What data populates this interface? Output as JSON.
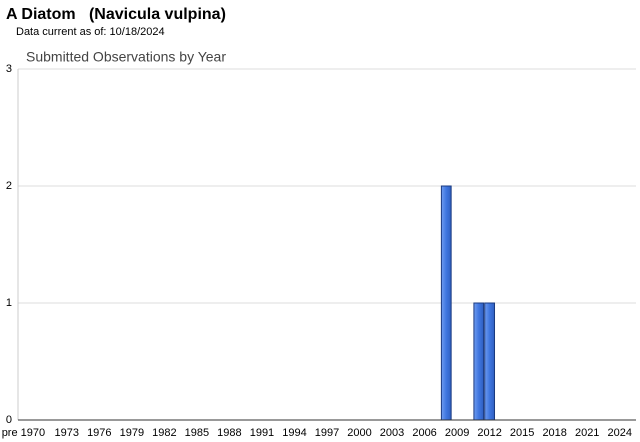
{
  "header": {
    "title": "A Diatom   (Navicula vulpina)",
    "subtitle": "Data current as of: 10/18/2024"
  },
  "chart_data": {
    "type": "bar",
    "title": "Submitted Observations by Year",
    "categories": [
      "pre 1970",
      null,
      null,
      null,
      "1973",
      null,
      null,
      "1976",
      null,
      null,
      "1979",
      null,
      null,
      "1982",
      null,
      null,
      "1985",
      null,
      null,
      "1988",
      null,
      null,
      "1991",
      null,
      null,
      "1994",
      null,
      null,
      "1997",
      null,
      null,
      "2000",
      null,
      null,
      "2003",
      null,
      null,
      "2006",
      null,
      null,
      "2009",
      null,
      null,
      "2012",
      null,
      null,
      "2015",
      null,
      null,
      "2018",
      null,
      null,
      "2021",
      null,
      null,
      "2024",
      null
    ],
    "values": [
      0,
      0,
      0,
      0,
      0,
      0,
      0,
      0,
      0,
      0,
      0,
      0,
      0,
      0,
      0,
      0,
      0,
      0,
      0,
      0,
      0,
      0,
      0,
      0,
      0,
      0,
      0,
      0,
      0,
      0,
      0,
      0,
      0,
      0,
      0,
      0,
      0,
      0,
      0,
      2,
      0,
      0,
      1,
      1,
      0,
      0,
      0,
      0,
      0,
      0,
      0,
      0,
      0,
      0,
      0,
      0,
      0
    ],
    "color": "#3f76e0",
    "ylim": [
      0,
      3
    ],
    "yticks": [
      0,
      1,
      2,
      3
    ],
    "grid": true
  }
}
